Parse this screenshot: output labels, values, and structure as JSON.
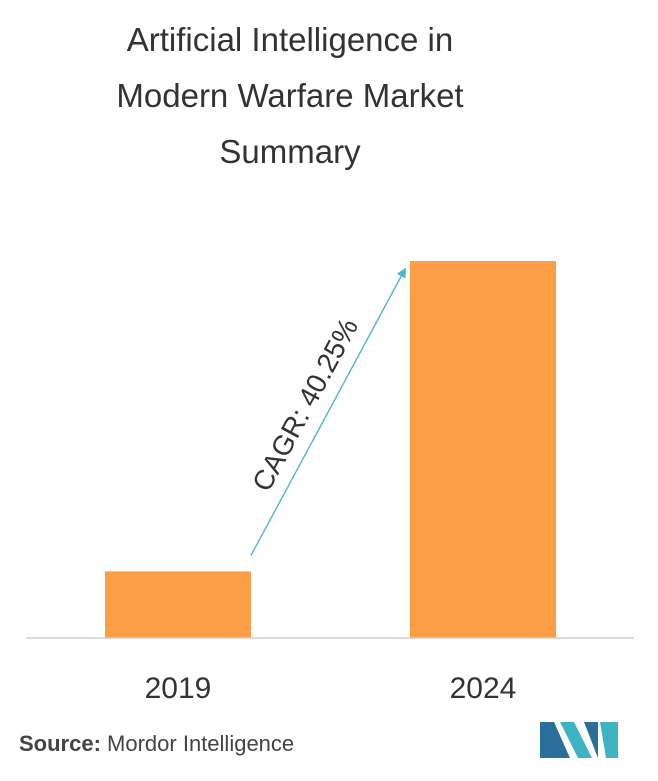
{
  "chart_data": {
    "type": "bar",
    "title_lines": [
      "Artificial Intelligence in",
      "Modern Warfare Market",
      "Summary"
    ],
    "categories": [
      "2019",
      "2024"
    ],
    "values": [
      1.0,
      5.66
    ],
    "ylim": [
      0,
      5.66
    ],
    "xlabel": "",
    "ylabel": "",
    "grid": false,
    "legend": "none",
    "annotation": "CAGR: 40.25%",
    "bar_color": "#fb9e46",
    "arrow_color": "#4db8c9"
  },
  "source": {
    "label": "Source:",
    "text": "Mordor Intelligence"
  },
  "logo": {
    "icon": "mordor-intelligence-logo-icon",
    "colors": [
      "#2a6f9b",
      "#3fb3c3"
    ]
  }
}
